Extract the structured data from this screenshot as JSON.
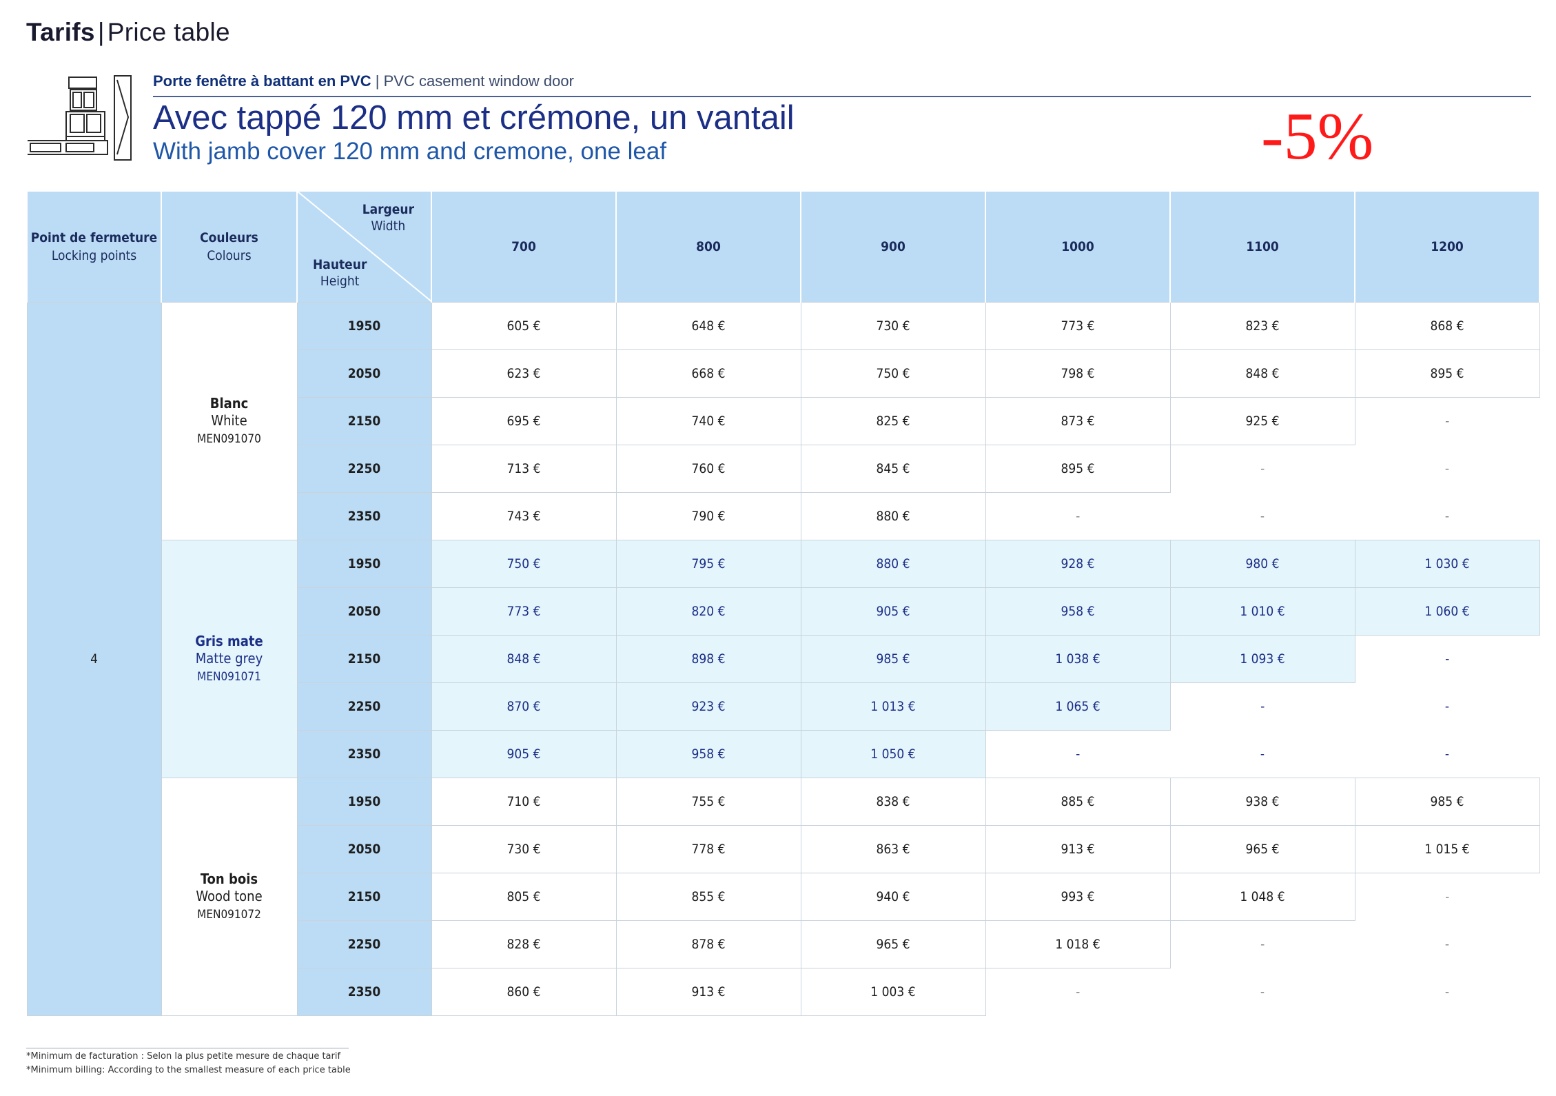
{
  "header": {
    "title_bold": "Tarifs",
    "separator": "|",
    "title_en": "Price table"
  },
  "product": {
    "category_fr": "Porte fenêtre à battant en PVC",
    "category_sep": "|",
    "category_en": "PVC casement window door",
    "heading_fr": "Avec tappé 120 mm et crémone, un vantail",
    "heading_en": "With jamb cover 120 mm and cremone, one leaf",
    "discount": "-5%"
  },
  "table": {
    "col_locking": {
      "fr": "Point de fermeture",
      "en": "Locking points"
    },
    "col_colours": {
      "fr": "Couleurs",
      "en": "Colours"
    },
    "width_label": {
      "fr": "Largeur",
      "en": "Width"
    },
    "height_label": {
      "fr": "Hauteur",
      "en": "Height"
    },
    "widths": [
      "700",
      "800",
      "900",
      "1000",
      "1100",
      "1200"
    ],
    "locking_points": "4",
    "groups": [
      {
        "name_fr": "Blanc",
        "name_en": "White",
        "code": "MEN091070",
        "tone": "white",
        "rows": [
          {
            "height": "1950",
            "prices": [
              "605 €",
              "648 €",
              "730 €",
              "773 €",
              "823 €",
              "868 €"
            ]
          },
          {
            "height": "2050",
            "prices": [
              "623 €",
              "668 €",
              "750 €",
              "798 €",
              "848 €",
              "895 €"
            ]
          },
          {
            "height": "2150",
            "prices": [
              "695 €",
              "740 €",
              "825 €",
              "873 €",
              "925 €",
              "-"
            ]
          },
          {
            "height": "2250",
            "prices": [
              "713 €",
              "760 €",
              "845 €",
              "895 €",
              "-",
              "-"
            ]
          },
          {
            "height": "2350",
            "prices": [
              "743 €",
              "790 €",
              "880 €",
              "-",
              "-",
              "-"
            ]
          }
        ]
      },
      {
        "name_fr": "Gris mate",
        "name_en": "Matte grey",
        "code": "MEN091071",
        "tone": "grey",
        "rows": [
          {
            "height": "1950",
            "prices": [
              "750 €",
              "795 €",
              "880 €",
              "928 €",
              "980 €",
              "1 030 €"
            ]
          },
          {
            "height": "2050",
            "prices": [
              "773 €",
              "820 €",
              "905 €",
              "958 €",
              "1 010 €",
              "1 060 €"
            ]
          },
          {
            "height": "2150",
            "prices": [
              "848 €",
              "898 €",
              "985 €",
              "1 038 €",
              "1 093 €",
              "-"
            ]
          },
          {
            "height": "2250",
            "prices": [
              "870 €",
              "923 €",
              "1 013 €",
              "1 065 €",
              "-",
              "-"
            ]
          },
          {
            "height": "2350",
            "prices": [
              "905 €",
              "958 €",
              "1 050 €",
              "-",
              "-",
              "-"
            ]
          }
        ]
      },
      {
        "name_fr": "Ton bois",
        "name_en": "Wood tone",
        "code": "MEN091072",
        "tone": "white",
        "rows": [
          {
            "height": "1950",
            "prices": [
              "710 €",
              "755 €",
              "838 €",
              "885 €",
              "938 €",
              "985 €"
            ]
          },
          {
            "height": "2050",
            "prices": [
              "730 €",
              "778 €",
              "863 €",
              "913 €",
              "965 €",
              "1 015 €"
            ]
          },
          {
            "height": "2150",
            "prices": [
              "805 €",
              "855 €",
              "940 €",
              "993 €",
              "1 048 €",
              "-"
            ]
          },
          {
            "height": "2250",
            "prices": [
              "828 €",
              "878 €",
              "965 €",
              "1 018 €",
              "-",
              "-"
            ]
          },
          {
            "height": "2350",
            "prices": [
              "860 €",
              "913 €",
              "1 003 €",
              "-",
              "-",
              "-"
            ]
          }
        ]
      }
    ]
  },
  "footnotes": {
    "fr": "*Minimum de facturation : Selon la plus petite mesure de chaque tarif",
    "en": "*Minimum billing: According to the smallest measure of each price table"
  }
}
